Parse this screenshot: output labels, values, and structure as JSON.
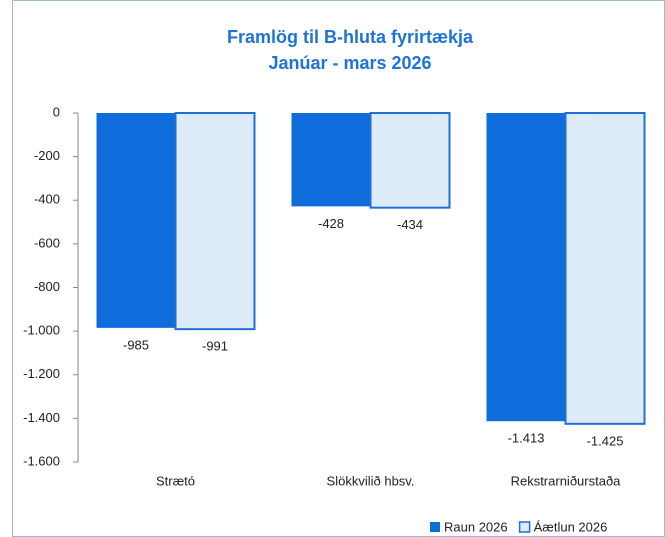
{
  "chart_data": {
    "type": "bar",
    "title": "Framlög til B-hluta fyrirtækja",
    "subtitle": "Janúar - mars 2026",
    "categories": [
      "Strætó",
      "Slökkvilið hbsv.",
      "Rekstrarniðurstaða"
    ],
    "series": [
      {
        "name": "Raun 2026",
        "color": "#0f6cdb",
        "values": [
          -985,
          -428,
          -1413
        ],
        "value_labels": [
          "-985",
          "-428",
          "-1.413"
        ]
      },
      {
        "name": "Áætlun 2026",
        "color": "#deebf8",
        "edge": "#1f6fd6",
        "values": [
          -991,
          -434,
          -1425
        ],
        "value_labels": [
          "-991",
          "-434",
          "-1.425"
        ]
      }
    ],
    "ylim": [
      -1600,
      0
    ],
    "yticks": [
      0,
      -200,
      -400,
      -600,
      -800,
      {
        "value": -1000,
        "label": "-1.000"
      },
      {
        "value": -1200,
        "label": "-1.200"
      },
      {
        "value": -1400,
        "label": "-1.400"
      },
      {
        "value": -1600,
        "label": "-1.600"
      }
    ],
    "legend": "bottom-right"
  }
}
